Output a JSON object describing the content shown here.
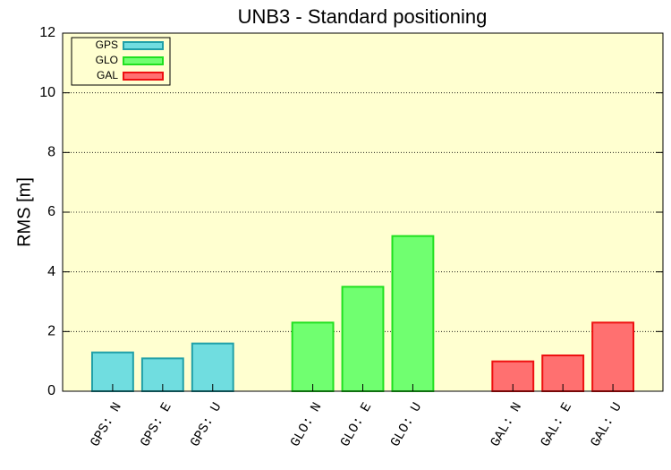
{
  "chart_data": {
    "type": "bar",
    "title": "UNB3 - Standard positioning",
    "ylabel": "RMS [m]",
    "series": [
      {
        "name": "GPS",
        "color": "#70dde0",
        "edge": "#20a0a8",
        "categories": [
          "GPS: N",
          "GPS: E",
          "GPS: U"
        ],
        "values": [
          1.3,
          1.1,
          1.6
        ]
      },
      {
        "name": "GLO",
        "color": "#70ff70",
        "edge": "#20e020",
        "categories": [
          "GLO: N",
          "GLO: E",
          "GLO: U"
        ],
        "values": [
          2.3,
          3.5,
          5.2
        ]
      },
      {
        "name": "GAL",
        "color": "#ff7070",
        "edge": "#ee1010",
        "categories": [
          "GAL: N",
          "GAL: E",
          "GAL: U"
        ],
        "values": [
          1.0,
          1.2,
          2.3
        ]
      }
    ],
    "ylim": [
      0,
      12
    ],
    "yticks": [
      0,
      2,
      4,
      6,
      8,
      10,
      12
    ],
    "grid": true,
    "legend": "upper left"
  }
}
